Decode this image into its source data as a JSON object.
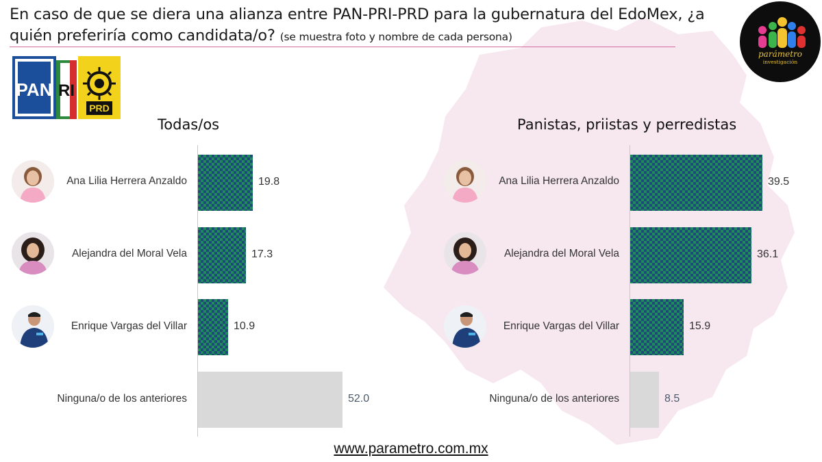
{
  "header": {
    "question": "En caso de que se diera una alianza entre PAN-PRI-PRD para la gubernatura del EdoMex, ¿a quién preferiría como candidata/o?",
    "note": "(se muestra foto y nombre de cada persona)"
  },
  "party_logos": {
    "pan": "PAN",
    "pri": "PRI",
    "prd": "PRD"
  },
  "brand": {
    "name": "parámetro",
    "tagline": "investigación"
  },
  "footer": {
    "url": "www.parametro.com.mx"
  },
  "colors": {
    "bar_pattern_green": "#1f8a5b",
    "bar_pattern_blue": "#1e4a78",
    "bar_none": "#d9d9d9",
    "title_rule": "#d46aa0",
    "map_tint": "#f6e3ec"
  },
  "icons": {
    "candidate_1": "woman-photo-icon",
    "candidate_2": "woman-photo-icon",
    "candidate_3": "man-photo-icon"
  },
  "chart_data": [
    {
      "type": "bar",
      "orientation": "horizontal",
      "title": "Todas/os",
      "categories": [
        "Ana Lilia Herrera Anzaldo",
        "Alejandra del Moral Vela",
        "Enrique Vargas del Villar",
        "Ninguna/o de los anteriores"
      ],
      "values": [
        19.8,
        17.3,
        10.9,
        52.0
      ],
      "labels": [
        "19.8",
        "17.3",
        "10.9",
        "52.0"
      ],
      "xlim": [
        0,
        100
      ],
      "grid": false
    },
    {
      "type": "bar",
      "orientation": "horizontal",
      "title": "Panistas, priistas y perredistas",
      "categories": [
        "Ana Lilia Herrera Anzaldo",
        "Alejandra del Moral Vela",
        "Enrique Vargas del Villar",
        "Ninguna/o de los anteriores"
      ],
      "values": [
        39.5,
        36.1,
        15.9,
        8.5
      ],
      "labels": [
        "39.5",
        "36.1",
        "15.9",
        "8.5"
      ],
      "xlim": [
        0,
        100
      ],
      "grid": false
    }
  ]
}
